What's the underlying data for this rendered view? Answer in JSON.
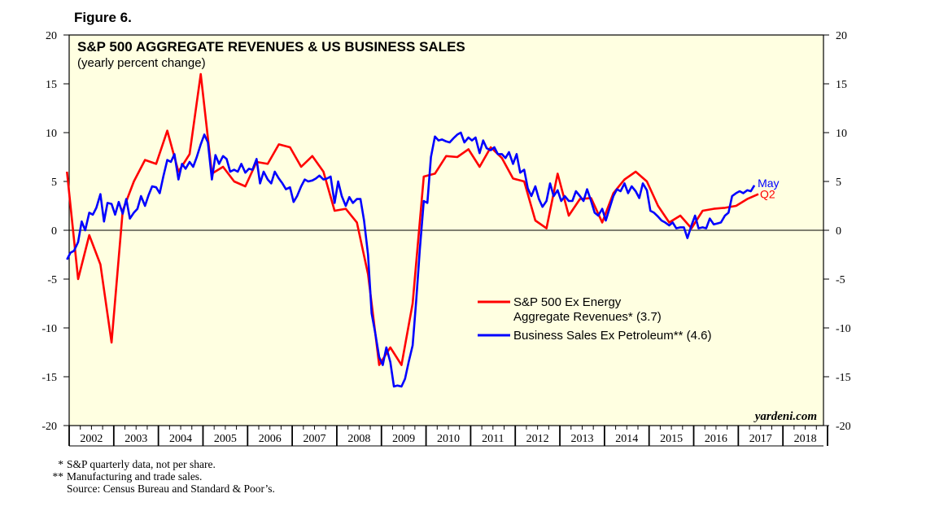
{
  "figure_label": "Figure 6.",
  "footnotes": [
    {
      "mark": "*",
      "text": "S&P quarterly data, not per share."
    },
    {
      "mark": "**",
      "text": "Manufacturing and trade sales."
    },
    {
      "mark": "",
      "text": "Source: Census Bureau and Standard & Poor’s."
    }
  ],
  "chart_data": {
    "type": "line",
    "title": "S&P 500 AGGREGATE REVENUES & US BUSINESS SALES",
    "subtitle": "(yearly percent change)",
    "watermark": "yardeni.com",
    "ylim": [
      -20,
      20
    ],
    "yticks": [
      -20,
      -15,
      -10,
      -5,
      0,
      5,
      10,
      15,
      20
    ],
    "xlim": [
      2002,
      2018.9
    ],
    "xticks": [
      "2002",
      "2003",
      "2004",
      "2005",
      "2006",
      "2007",
      "2008",
      "2009",
      "2010",
      "2011",
      "2012",
      "2013",
      "2014",
      "2015",
      "2016",
      "2017",
      "2018"
    ],
    "grid": false,
    "zero_line": true,
    "legend_position": "right-center",
    "series": [
      {
        "name": "S&P 500 Ex Energy",
        "name_line2": "Aggregate Revenues* (3.7)",
        "color": "#ff0000",
        "end_label": "Q2",
        "points": [
          [
            2001.95,
            6.0
          ],
          [
            2002.2,
            -5.0
          ],
          [
            2002.45,
            -0.5
          ],
          [
            2002.7,
            -3.5
          ],
          [
            2002.95,
            -11.5
          ],
          [
            2003.2,
            2.0
          ],
          [
            2003.45,
            5.0
          ],
          [
            2003.7,
            7.2
          ],
          [
            2003.95,
            6.8
          ],
          [
            2004.2,
            10.2
          ],
          [
            2004.45,
            6.0
          ],
          [
            2004.7,
            7.8
          ],
          [
            2004.95,
            16.0
          ],
          [
            2005.2,
            5.8
          ],
          [
            2005.45,
            6.5
          ],
          [
            2005.7,
            5.0
          ],
          [
            2005.95,
            4.5
          ],
          [
            2006.2,
            7.0
          ],
          [
            2006.45,
            6.8
          ],
          [
            2006.7,
            8.8
          ],
          [
            2006.95,
            8.5
          ],
          [
            2007.2,
            6.5
          ],
          [
            2007.45,
            7.6
          ],
          [
            2007.7,
            6.0
          ],
          [
            2007.95,
            2.0
          ],
          [
            2008.2,
            2.2
          ],
          [
            2008.45,
            0.8
          ],
          [
            2008.7,
            -4.5
          ],
          [
            2008.95,
            -13.8
          ],
          [
            2009.2,
            -12.0
          ],
          [
            2009.45,
            -13.8
          ],
          [
            2009.7,
            -7.5
          ],
          [
            2009.95,
            5.5
          ],
          [
            2010.2,
            5.8
          ],
          [
            2010.45,
            7.6
          ],
          [
            2010.7,
            7.5
          ],
          [
            2010.95,
            8.3
          ],
          [
            2011.2,
            6.5
          ],
          [
            2011.45,
            8.5
          ],
          [
            2011.7,
            7.4
          ],
          [
            2011.95,
            5.3
          ],
          [
            2012.2,
            5.0
          ],
          [
            2012.45,
            1.0
          ],
          [
            2012.7,
            0.2
          ],
          [
            2012.95,
            5.8
          ],
          [
            2013.2,
            1.5
          ],
          [
            2013.45,
            3.2
          ],
          [
            2013.7,
            3.3
          ],
          [
            2013.95,
            0.8
          ],
          [
            2014.2,
            3.8
          ],
          [
            2014.45,
            5.2
          ],
          [
            2014.7,
            6.0
          ],
          [
            2014.95,
            5.0
          ],
          [
            2015.2,
            2.5
          ],
          [
            2015.45,
            0.8
          ],
          [
            2015.7,
            1.5
          ],
          [
            2015.95,
            0.2
          ],
          [
            2016.2,
            2.0
          ],
          [
            2016.45,
            2.2
          ],
          [
            2016.7,
            2.3
          ],
          [
            2016.95,
            2.5
          ],
          [
            2017.2,
            3.2
          ],
          [
            2017.45,
            3.7
          ]
        ]
      },
      {
        "name": "Business Sales Ex Petroleum**",
        "value_label": "(4.6)",
        "color": "#0000ff",
        "end_label": "May",
        "points": [
          [
            2001.95,
            -3.0
          ],
          [
            2002.03,
            -2.3
          ],
          [
            2002.11,
            -2.1
          ],
          [
            2002.2,
            -1.2
          ],
          [
            2002.28,
            0.9
          ],
          [
            2002.36,
            0.0
          ],
          [
            2002.45,
            1.8
          ],
          [
            2002.53,
            1.6
          ],
          [
            2002.61,
            2.3
          ],
          [
            2002.7,
            3.7
          ],
          [
            2002.78,
            0.9
          ],
          [
            2002.86,
            2.8
          ],
          [
            2002.95,
            2.7
          ],
          [
            2003.03,
            1.6
          ],
          [
            2003.11,
            2.9
          ],
          [
            2003.2,
            1.7
          ],
          [
            2003.28,
            3.2
          ],
          [
            2003.36,
            1.2
          ],
          [
            2003.45,
            1.8
          ],
          [
            2003.53,
            2.2
          ],
          [
            2003.61,
            3.5
          ],
          [
            2003.7,
            2.5
          ],
          [
            2003.78,
            3.6
          ],
          [
            2003.86,
            4.5
          ],
          [
            2003.95,
            4.4
          ],
          [
            2004.03,
            3.8
          ],
          [
            2004.11,
            5.5
          ],
          [
            2004.2,
            7.2
          ],
          [
            2004.28,
            7.0
          ],
          [
            2004.36,
            7.8
          ],
          [
            2004.45,
            5.2
          ],
          [
            2004.53,
            6.8
          ],
          [
            2004.61,
            6.3
          ],
          [
            2004.7,
            7.0
          ],
          [
            2004.78,
            6.5
          ],
          [
            2004.86,
            7.5
          ],
          [
            2004.95,
            8.8
          ],
          [
            2005.03,
            9.8
          ],
          [
            2005.11,
            9.0
          ],
          [
            2005.2,
            5.2
          ],
          [
            2005.28,
            7.7
          ],
          [
            2005.36,
            6.8
          ],
          [
            2005.45,
            7.6
          ],
          [
            2005.53,
            7.3
          ],
          [
            2005.61,
            6.0
          ],
          [
            2005.7,
            6.2
          ],
          [
            2005.78,
            6.0
          ],
          [
            2005.86,
            6.8
          ],
          [
            2005.95,
            5.9
          ],
          [
            2006.03,
            6.3
          ],
          [
            2006.11,
            6.2
          ],
          [
            2006.2,
            7.3
          ],
          [
            2006.28,
            4.8
          ],
          [
            2006.36,
            6.0
          ],
          [
            2006.45,
            5.2
          ],
          [
            2006.53,
            4.8
          ],
          [
            2006.61,
            6.0
          ],
          [
            2006.7,
            5.3
          ],
          [
            2006.78,
            4.8
          ],
          [
            2006.86,
            4.2
          ],
          [
            2006.95,
            4.4
          ],
          [
            2007.03,
            2.9
          ],
          [
            2007.11,
            3.5
          ],
          [
            2007.2,
            4.5
          ],
          [
            2007.28,
            5.2
          ],
          [
            2007.36,
            5.0
          ],
          [
            2007.45,
            5.1
          ],
          [
            2007.53,
            5.3
          ],
          [
            2007.61,
            5.6
          ],
          [
            2007.7,
            5.2
          ],
          [
            2007.78,
            5.3
          ],
          [
            2007.86,
            5.5
          ],
          [
            2007.95,
            2.8
          ],
          [
            2008.03,
            5.0
          ],
          [
            2008.11,
            3.5
          ],
          [
            2008.2,
            2.5
          ],
          [
            2008.28,
            3.4
          ],
          [
            2008.36,
            2.8
          ],
          [
            2008.45,
            3.2
          ],
          [
            2008.53,
            3.2
          ],
          [
            2008.61,
            1.0
          ],
          [
            2008.7,
            -2.5
          ],
          [
            2008.78,
            -8.5
          ],
          [
            2008.86,
            -10.5
          ],
          [
            2008.95,
            -13.0
          ],
          [
            2009.03,
            -13.8
          ],
          [
            2009.11,
            -12.0
          ],
          [
            2009.2,
            -13.5
          ],
          [
            2009.28,
            -16.0
          ],
          [
            2009.36,
            -15.9
          ],
          [
            2009.45,
            -16.0
          ],
          [
            2009.53,
            -15.2
          ],
          [
            2009.61,
            -13.5
          ],
          [
            2009.7,
            -11.8
          ],
          [
            2009.78,
            -7.2
          ],
          [
            2009.86,
            -2.0
          ],
          [
            2009.95,
            3.0
          ],
          [
            2010.03,
            2.8
          ],
          [
            2010.11,
            7.5
          ],
          [
            2010.2,
            9.6
          ],
          [
            2010.28,
            9.2
          ],
          [
            2010.36,
            9.3
          ],
          [
            2010.45,
            9.1
          ],
          [
            2010.53,
            9.0
          ],
          [
            2010.61,
            9.4
          ],
          [
            2010.7,
            9.8
          ],
          [
            2010.78,
            10.0
          ],
          [
            2010.86,
            9.0
          ],
          [
            2010.95,
            9.5
          ],
          [
            2011.03,
            9.2
          ],
          [
            2011.11,
            9.5
          ],
          [
            2011.2,
            7.9
          ],
          [
            2011.28,
            9.2
          ],
          [
            2011.36,
            8.4
          ],
          [
            2011.45,
            8.2
          ],
          [
            2011.53,
            8.5
          ],
          [
            2011.61,
            7.8
          ],
          [
            2011.7,
            7.8
          ],
          [
            2011.78,
            7.4
          ],
          [
            2011.86,
            8.0
          ],
          [
            2011.95,
            6.8
          ],
          [
            2012.03,
            7.8
          ],
          [
            2012.11,
            5.9
          ],
          [
            2012.2,
            6.2
          ],
          [
            2012.28,
            4.3
          ],
          [
            2012.36,
            3.5
          ],
          [
            2012.45,
            4.5
          ],
          [
            2012.53,
            3.2
          ],
          [
            2012.61,
            2.4
          ],
          [
            2012.7,
            3.0
          ],
          [
            2012.78,
            4.8
          ],
          [
            2012.86,
            3.5
          ],
          [
            2012.95,
            4.1
          ],
          [
            2013.03,
            3.0
          ],
          [
            2013.11,
            3.5
          ],
          [
            2013.2,
            3.0
          ],
          [
            2013.28,
            3.0
          ],
          [
            2013.36,
            4.0
          ],
          [
            2013.45,
            3.5
          ],
          [
            2013.53,
            3.0
          ],
          [
            2013.61,
            4.2
          ],
          [
            2013.7,
            3.0
          ],
          [
            2013.78,
            1.8
          ],
          [
            2013.86,
            1.5
          ],
          [
            2013.95,
            2.2
          ],
          [
            2014.03,
            1.0
          ],
          [
            2014.11,
            2.2
          ],
          [
            2014.2,
            3.5
          ],
          [
            2014.28,
            4.2
          ],
          [
            2014.36,
            4.0
          ],
          [
            2014.45,
            4.8
          ],
          [
            2014.53,
            3.8
          ],
          [
            2014.61,
            4.5
          ],
          [
            2014.7,
            4.0
          ],
          [
            2014.78,
            3.3
          ],
          [
            2014.86,
            4.8
          ],
          [
            2014.95,
            4.1
          ],
          [
            2015.03,
            2.0
          ],
          [
            2015.11,
            1.8
          ],
          [
            2015.2,
            1.4
          ],
          [
            2015.28,
            1.0
          ],
          [
            2015.36,
            0.8
          ],
          [
            2015.45,
            0.5
          ],
          [
            2015.53,
            0.8
          ],
          [
            2015.61,
            0.2
          ],
          [
            2015.7,
            0.3
          ],
          [
            2015.78,
            0.3
          ],
          [
            2015.86,
            -0.8
          ],
          [
            2015.95,
            0.5
          ],
          [
            2016.03,
            1.5
          ],
          [
            2016.11,
            0.2
          ],
          [
            2016.2,
            0.3
          ],
          [
            2016.28,
            0.2
          ],
          [
            2016.36,
            1.2
          ],
          [
            2016.45,
            0.6
          ],
          [
            2016.53,
            0.7
          ],
          [
            2016.61,
            0.8
          ],
          [
            2016.7,
            1.5
          ],
          [
            2016.78,
            1.8
          ],
          [
            2016.86,
            3.5
          ],
          [
            2016.95,
            3.8
          ],
          [
            2017.03,
            4.0
          ],
          [
            2017.11,
            3.8
          ],
          [
            2017.2,
            4.1
          ],
          [
            2017.28,
            4.0
          ],
          [
            2017.36,
            4.6
          ]
        ]
      }
    ]
  }
}
